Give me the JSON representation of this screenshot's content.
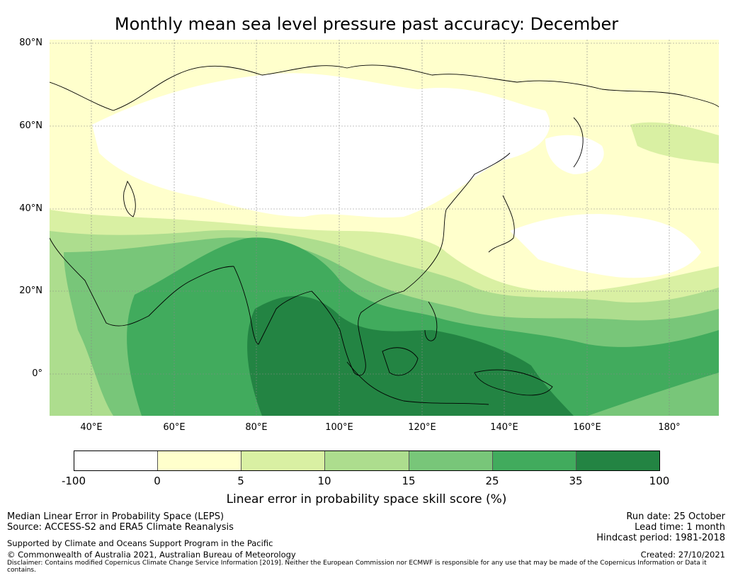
{
  "title": "Monthly mean sea level pressure past accuracy: December",
  "map": {
    "latitude_labels": [
      "80°N",
      "60°N",
      "40°N",
      "20°N",
      "0°"
    ],
    "longitude_labels": [
      "40°E",
      "60°E",
      "80°E",
      "100°E",
      "120°E",
      "140°E",
      "160°E",
      "180°"
    ],
    "extent": {
      "lon_min": 30,
      "lon_max": 192,
      "lat_min": -10,
      "lat_max": 81
    }
  },
  "colorbar": {
    "ticks": [
      "-100",
      "0",
      "5",
      "10",
      "15",
      "25",
      "35",
      "100"
    ],
    "colors": [
      "#ffffff",
      "#ffffcc",
      "#d9f0a3",
      "#addd8e",
      "#78c679",
      "#41ab5d",
      "#238443"
    ],
    "label": "Linear error in probability space skill score (%)"
  },
  "footer": {
    "left_line1": "Median Linear Error in Probability Space (LEPS)",
    "left_line2": "Source: ACCESS-S2 and ERA5 Climate Reanalysis",
    "supported": "Supported by Climate and Oceans Support Program in the Pacific",
    "copyright": "© Commonwealth of Australia 2021, Australian Bureau of Meteorology",
    "run_date": "Run date: 25 October",
    "lead_time": "Lead time: 1 month",
    "hindcast": "Hindcast period: 1981-2018",
    "created": "Created: 27/10/2021",
    "disclaimer": "Disclaimer: Contains modified Copernicus Climate Change Service Information [2019]. Neither the European Commission nor ECMWF is responsible for any use that may be made of the Copernicus Information or Data it contains."
  }
}
